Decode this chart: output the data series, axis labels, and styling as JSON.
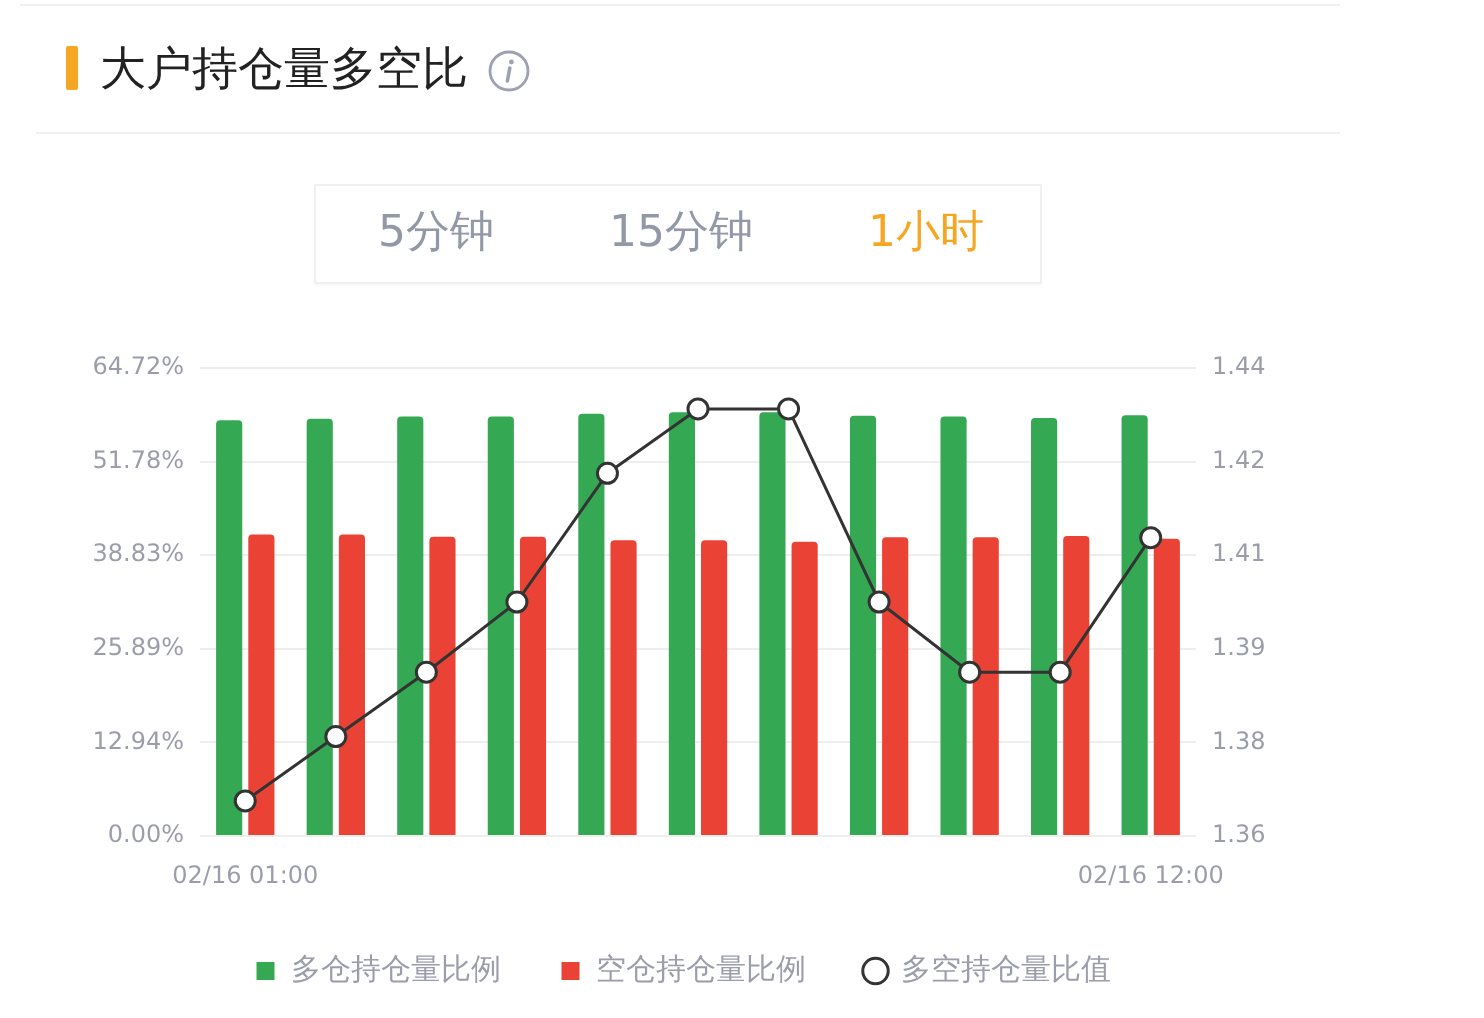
{
  "chart_data": {
    "type": "bar",
    "title": "大户持仓量多空比",
    "annotations": [
      "5分钟",
      "15分钟",
      "1小时"
    ],
    "categories": [
      "02/16 01:00",
      null,
      null,
      null,
      null,
      null,
      null,
      null,
      null,
      null,
      "02/16 12:00"
    ],
    "series": [
      {
        "name": "多仓持仓量比例",
        "color": "#34a853",
        "values": [
          57.5,
          57.7,
          58.0,
          58.0,
          58.4,
          58.6,
          58.6,
          58.1,
          58.0,
          57.8,
          58.2
        ]
      },
      {
        "name": "空仓持仓量比例",
        "color": "#ea4335",
        "values": [
          41.7,
          41.7,
          41.4,
          41.4,
          40.9,
          40.9,
          40.7,
          41.3,
          41.3,
          41.5,
          41.1
        ]
      },
      {
        "name": "多空持仓量比值",
        "type": "line",
        "axis": "y2",
        "color": "#333333",
        "values": [
          1.366,
          1.377,
          1.388,
          1.4,
          1.422,
          1.433,
          1.433,
          1.4,
          1.388,
          1.388,
          1.411
        ]
      }
    ],
    "ylim": [
      0,
      64.72
    ],
    "yticks": [
      {
        "value": 0,
        "label": "0.00%"
      },
      {
        "value": 12.944,
        "label": "12.94%"
      },
      {
        "value": 25.888,
        "label": "25.89%"
      },
      {
        "value": 38.832,
        "label": "38.83%"
      },
      {
        "value": 51.776,
        "label": "51.78%"
      },
      {
        "value": 64.72,
        "label": "64.72%"
      }
    ],
    "y2lim": [
      1.36,
      1.44
    ],
    "y2ticks": [
      1.36,
      {
        "value": 1.376,
        "label": "1.38"
      },
      {
        "value": 1.392,
        "label": "1.39"
      },
      {
        "value": 1.408,
        "label": "1.41"
      },
      {
        "value": 1.424,
        "label": "1.42"
      },
      1.44
    ],
    "grid": "y",
    "legend": "bottom",
    "marker": "circle"
  }
}
